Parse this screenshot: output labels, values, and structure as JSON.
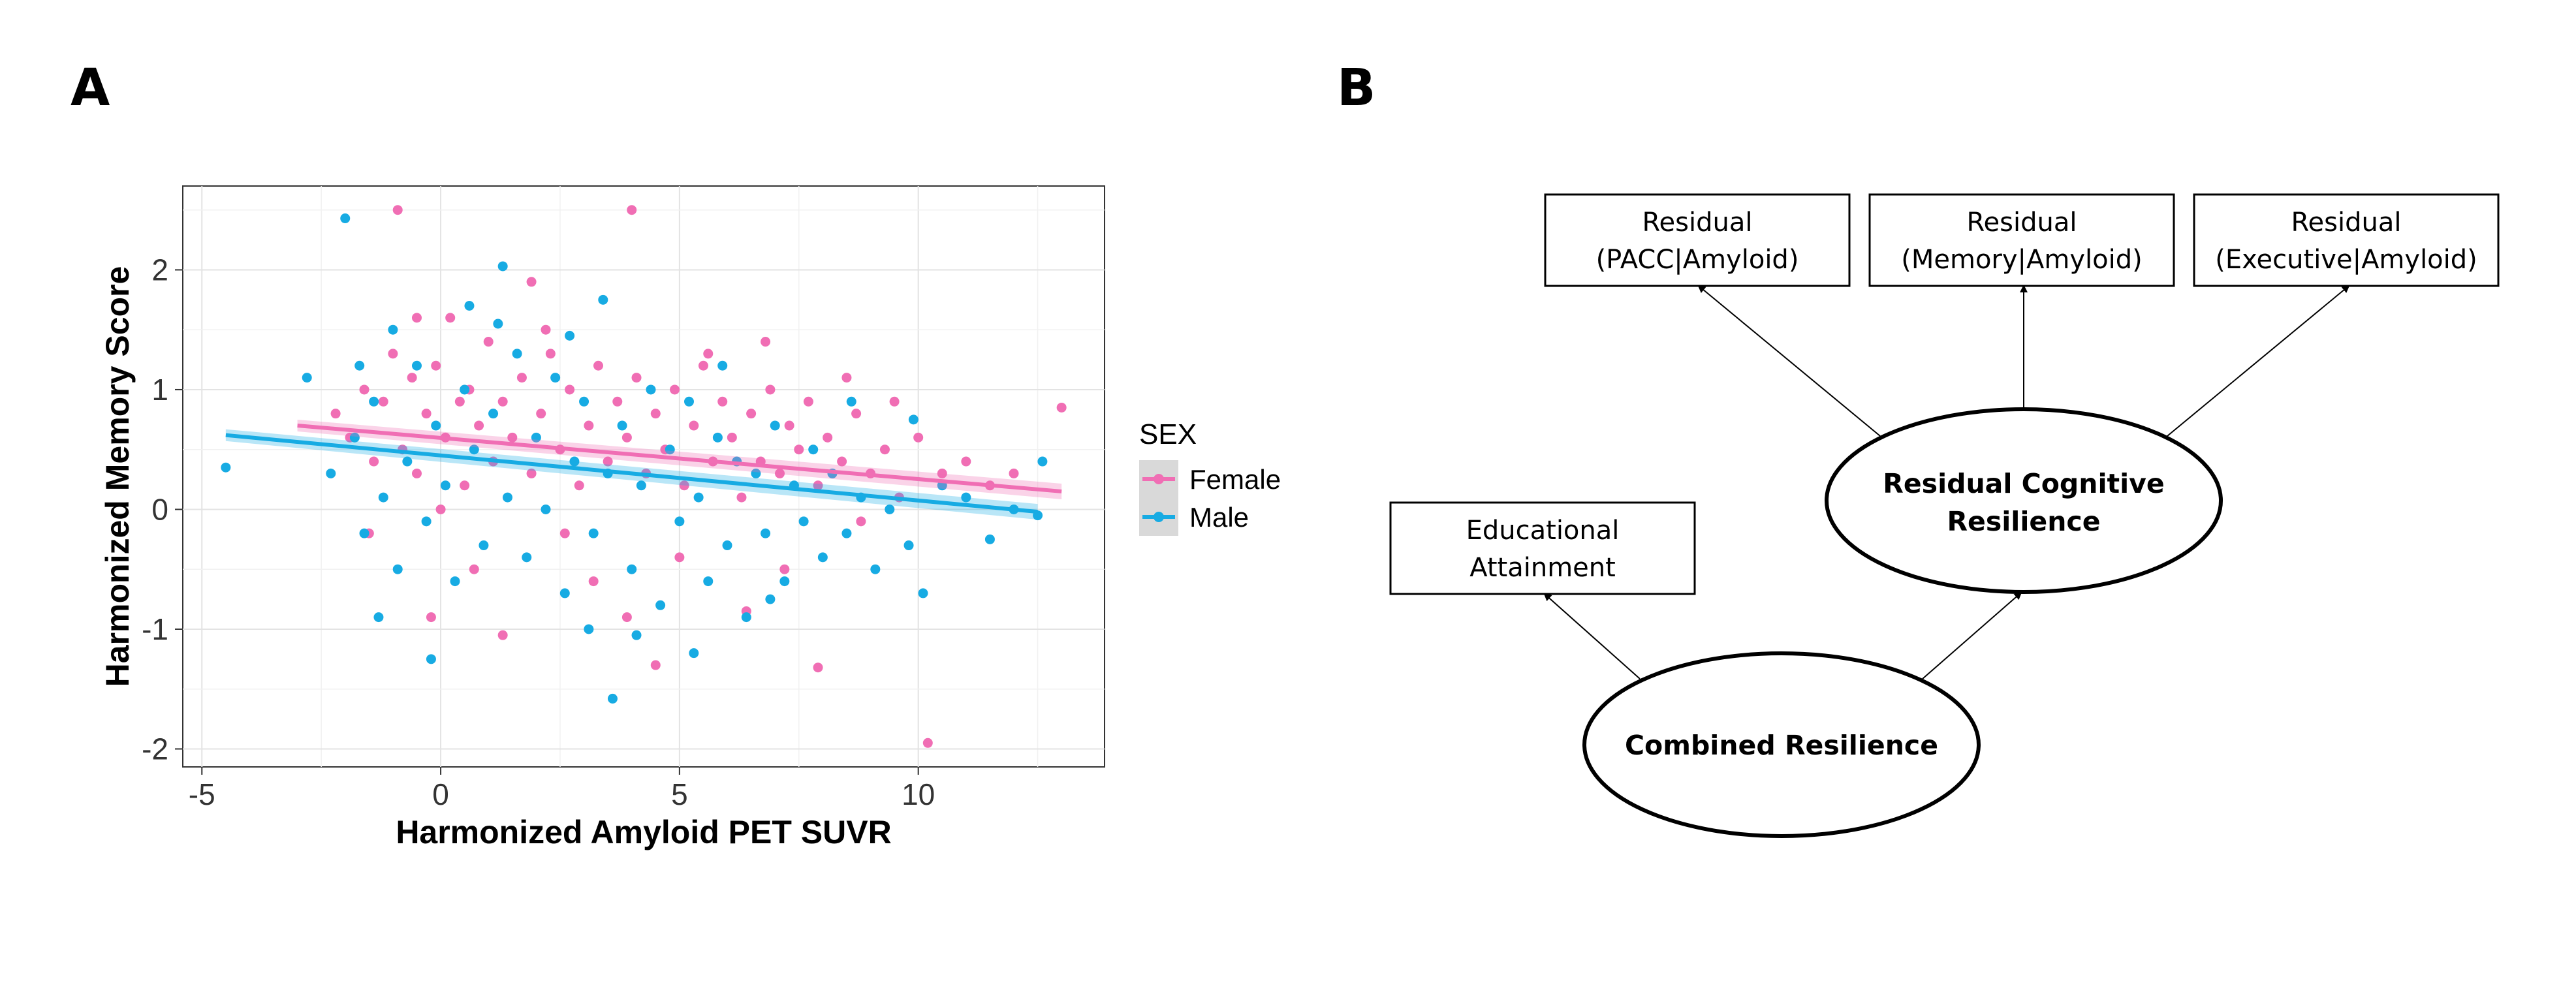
{
  "panels": {
    "a": "A",
    "b": "B"
  },
  "chart_data": {
    "type": "scatter",
    "xlabel": "Harmonized Amyloid PET SUVR",
    "ylabel": "Harmonized Memory Score",
    "xlim": [
      -5.4,
      13.9
    ],
    "ylim": [
      -2.15,
      2.7
    ],
    "xticks": [
      -5,
      0,
      5,
      10
    ],
    "yticks": [
      -2,
      -1,
      0,
      1,
      2
    ],
    "grid": true,
    "legend": {
      "title": "SEX",
      "position": "right"
    },
    "series": [
      {
        "name": "Female",
        "color": "#f06eb4",
        "regression": {
          "x": [
            -3,
            13
          ],
          "y": [
            0.7,
            0.15
          ]
        },
        "points": [
          [
            -2.2,
            0.8
          ],
          [
            -1.9,
            0.6
          ],
          [
            -1.6,
            1.0
          ],
          [
            -1.4,
            0.4
          ],
          [
            -1.2,
            0.9
          ],
          [
            -1.0,
            1.3
          ],
          [
            -0.8,
            0.5
          ],
          [
            -0.6,
            1.1
          ],
          [
            -0.5,
            0.3
          ],
          [
            -0.3,
            0.8
          ],
          [
            -0.1,
            1.2
          ],
          [
            0.1,
            0.6
          ],
          [
            0.2,
            1.6
          ],
          [
            0.4,
            0.9
          ],
          [
            0.5,
            0.2
          ],
          [
            0.6,
            1.0
          ],
          [
            0.8,
            0.7
          ],
          [
            1.0,
            1.4
          ],
          [
            1.1,
            0.4
          ],
          [
            1.3,
            0.9
          ],
          [
            1.5,
            0.6
          ],
          [
            1.7,
            1.1
          ],
          [
            1.9,
            0.3
          ],
          [
            2.1,
            0.8
          ],
          [
            2.3,
            1.3
          ],
          [
            2.5,
            0.5
          ],
          [
            2.7,
            1.0
          ],
          [
            2.9,
            0.2
          ],
          [
            3.1,
            0.7
          ],
          [
            3.3,
            1.2
          ],
          [
            3.5,
            0.4
          ],
          [
            3.7,
            0.9
          ],
          [
            3.9,
            0.6
          ],
          [
            4.1,
            1.1
          ],
          [
            4.3,
            0.3
          ],
          [
            4.5,
            0.8
          ],
          [
            4.7,
            0.5
          ],
          [
            4.9,
            1.0
          ],
          [
            5.1,
            0.2
          ],
          [
            5.3,
            0.7
          ],
          [
            5.5,
            1.2
          ],
          [
            5.7,
            0.4
          ],
          [
            5.9,
            0.9
          ],
          [
            6.1,
            0.6
          ],
          [
            6.3,
            0.1
          ],
          [
            6.5,
            0.8
          ],
          [
            6.7,
            0.4
          ],
          [
            6.9,
            1.0
          ],
          [
            7.1,
            0.3
          ],
          [
            7.3,
            0.7
          ],
          [
            7.5,
            0.5
          ],
          [
            7.7,
            0.9
          ],
          [
            7.9,
            0.2
          ],
          [
            8.1,
            0.6
          ],
          [
            8.4,
            0.4
          ],
          [
            8.7,
            0.8
          ],
          [
            9.0,
            0.3
          ],
          [
            9.3,
            0.5
          ],
          [
            9.6,
            0.1
          ],
          [
            10.0,
            0.6
          ],
          [
            10.5,
            0.3
          ],
          [
            11.0,
            0.4
          ],
          [
            11.5,
            0.2
          ],
          [
            12.0,
            0.3
          ],
          [
            13.0,
            0.85
          ],
          [
            -0.9,
            2.5
          ],
          [
            4.0,
            2.5
          ],
          [
            10.2,
            -1.95
          ],
          [
            7.9,
            -1.32
          ],
          [
            4.5,
            -1.3
          ],
          [
            1.3,
            -1.05
          ],
          [
            -0.2,
            -0.9
          ],
          [
            6.4,
            -0.85
          ],
          [
            3.2,
            -0.6
          ],
          [
            1.9,
            1.9
          ],
          [
            0.0,
            0.0
          ],
          [
            -1.5,
            -0.2
          ],
          [
            5.0,
            -0.4
          ],
          [
            2.6,
            -0.2
          ],
          [
            7.2,
            -0.5
          ],
          [
            8.8,
            -0.1
          ],
          [
            0.7,
            -0.5
          ],
          [
            3.9,
            -0.9
          ],
          [
            -0.5,
            1.6
          ],
          [
            2.2,
            1.5
          ],
          [
            5.6,
            1.3
          ],
          [
            6.8,
            1.4
          ],
          [
            8.5,
            1.1
          ],
          [
            9.5,
            0.9
          ]
        ]
      },
      {
        "name": "Male",
        "color": "#17abe3",
        "regression": {
          "x": [
            -4.5,
            12.5
          ],
          "y": [
            0.62,
            -0.02
          ]
        },
        "points": [
          [
            -4.5,
            0.35
          ],
          [
            -2.8,
            1.1
          ],
          [
            -2.0,
            2.43
          ],
          [
            -2.3,
            0.3
          ],
          [
            -1.8,
            0.6
          ],
          [
            -1.6,
            -0.2
          ],
          [
            -1.4,
            0.9
          ],
          [
            -1.2,
            0.1
          ],
          [
            -1.0,
            1.5
          ],
          [
            -0.9,
            -0.5
          ],
          [
            -0.7,
            0.4
          ],
          [
            -0.5,
            1.2
          ],
          [
            -0.3,
            -0.1
          ],
          [
            -0.1,
            0.7
          ],
          [
            0.1,
            0.2
          ],
          [
            0.3,
            -0.6
          ],
          [
            0.5,
            1.0
          ],
          [
            0.7,
            0.5
          ],
          [
            0.9,
            -0.3
          ],
          [
            1.1,
            0.8
          ],
          [
            1.3,
            2.03
          ],
          [
            1.4,
            0.1
          ],
          [
            1.6,
            1.3
          ],
          [
            1.8,
            -0.4
          ],
          [
            2.0,
            0.6
          ],
          [
            2.2,
            0.0
          ],
          [
            2.4,
            1.1
          ],
          [
            2.6,
            -0.7
          ],
          [
            2.8,
            0.4
          ],
          [
            3.0,
            0.9
          ],
          [
            3.2,
            -0.2
          ],
          [
            3.4,
            1.75
          ],
          [
            3.5,
            0.3
          ],
          [
            3.6,
            -1.58
          ],
          [
            3.8,
            0.7
          ],
          [
            4.0,
            -0.5
          ],
          [
            4.2,
            0.2
          ],
          [
            4.4,
            1.0
          ],
          [
            4.6,
            -0.8
          ],
          [
            4.8,
            0.5
          ],
          [
            5.0,
            -0.1
          ],
          [
            5.2,
            0.9
          ],
          [
            5.4,
            0.1
          ],
          [
            5.6,
            -0.6
          ],
          [
            5.8,
            0.6
          ],
          [
            6.0,
            -0.3
          ],
          [
            6.2,
            0.4
          ],
          [
            6.4,
            -0.9
          ],
          [
            6.6,
            0.3
          ],
          [
            6.8,
            -0.2
          ],
          [
            7.0,
            0.7
          ],
          [
            7.2,
            -0.6
          ],
          [
            7.4,
            0.2
          ],
          [
            7.6,
            -0.1
          ],
          [
            7.8,
            0.5
          ],
          [
            8.0,
            -0.4
          ],
          [
            8.2,
            0.3
          ],
          [
            8.5,
            -0.2
          ],
          [
            8.8,
            0.1
          ],
          [
            9.1,
            -0.5
          ],
          [
            9.4,
            0.0
          ],
          [
            9.8,
            -0.3
          ],
          [
            10.1,
            -0.7
          ],
          [
            10.5,
            0.2
          ],
          [
            11.0,
            0.1
          ],
          [
            11.5,
            -0.25
          ],
          [
            12.0,
            0.0
          ],
          [
            12.5,
            -0.05
          ],
          [
            12.6,
            0.4
          ],
          [
            -0.2,
            -1.25
          ],
          [
            -1.3,
            -0.9
          ],
          [
            3.1,
            -1.0
          ],
          [
            5.3,
            -1.2
          ],
          [
            4.1,
            -1.05
          ],
          [
            6.9,
            -0.75
          ],
          [
            0.6,
            1.7
          ],
          [
            2.7,
            1.45
          ],
          [
            -1.7,
            1.2
          ],
          [
            1.2,
            1.55
          ],
          [
            5.9,
            1.2
          ],
          [
            8.6,
            0.9
          ],
          [
            9.9,
            0.75
          ]
        ]
      }
    ]
  },
  "diagram": {
    "boxes": {
      "pacc": [
        "Residual",
        "(PACC|Amyloid)"
      ],
      "memory": [
        "Residual",
        "(Memory|Amyloid)"
      ],
      "executive": [
        "Residual",
        "(Executive|Amyloid)"
      ],
      "education": [
        "Educational",
        "Attainment"
      ]
    },
    "latents": {
      "residual": [
        "Residual Cognitive",
        "Resilience"
      ],
      "combined": [
        "Combined Resilience"
      ]
    }
  }
}
